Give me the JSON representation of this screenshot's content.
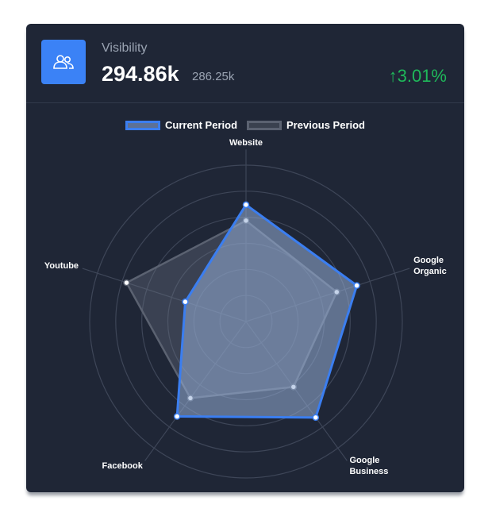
{
  "header": {
    "title": "Visibility",
    "value": "294.86k",
    "previous": "286.25k",
    "change": "3.01%"
  },
  "chart_data": {
    "type": "radar",
    "categories": [
      "Website",
      "Google Organic",
      "Google Business",
      "Facebook",
      "Youtube"
    ],
    "series": [
      {
        "name": "Current Period",
        "color": "#3b7ef0",
        "values": [
          4.48,
          4.47,
          4.55,
          4.5,
          2.45
        ]
      },
      {
        "name": "Previous Period",
        "color": "#5b6271",
        "values": [
          3.87,
          3.66,
          3.1,
          3.63,
          4.82
        ]
      }
    ],
    "rlim": [
      0,
      6
    ],
    "rticks": [
      1,
      2,
      3,
      4,
      5,
      6
    ],
    "grid": true
  }
}
